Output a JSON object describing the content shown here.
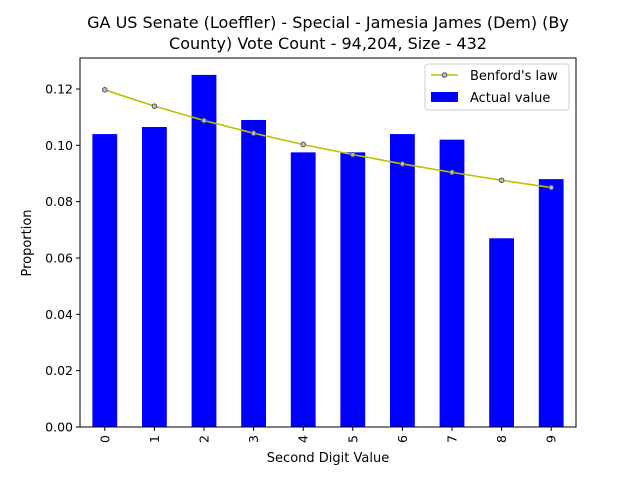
{
  "chart_data": {
    "type": "bar",
    "title_lines": [
      "GA US Senate (Loeffler) - Special - Jamesia James (Dem) (By",
      "County) Vote Count - 94,204, Size - 432"
    ],
    "xlabel": "Second Digit Value",
    "ylabel": "Proportion",
    "categories": [
      "0",
      "1",
      "2",
      "3",
      "4",
      "5",
      "6",
      "7",
      "8",
      "9"
    ],
    "ylim": [
      0,
      0.131
    ],
    "yticks": [
      0.0,
      0.02,
      0.04,
      0.06,
      0.08,
      0.1,
      0.12
    ],
    "ytick_labels": [
      "0.00",
      "0.02",
      "0.04",
      "0.06",
      "0.08",
      "0.10",
      "0.12"
    ],
    "grid": false,
    "legend_position": "top-right",
    "series": [
      {
        "name": "Actual value",
        "kind": "bar",
        "color": "#0000ff",
        "values": [
          0.104,
          0.1065,
          0.125,
          0.109,
          0.0975,
          0.0975,
          0.104,
          0.102,
          0.067,
          0.088
        ]
      },
      {
        "name": "Benford's law",
        "kind": "line",
        "color": "#bfbf00",
        "marker_fill": "#bfbfbf",
        "values": [
          0.1197,
          0.1139,
          0.1088,
          0.1043,
          0.1003,
          0.0967,
          0.0934,
          0.0904,
          0.0876,
          0.085
        ]
      }
    ]
  }
}
